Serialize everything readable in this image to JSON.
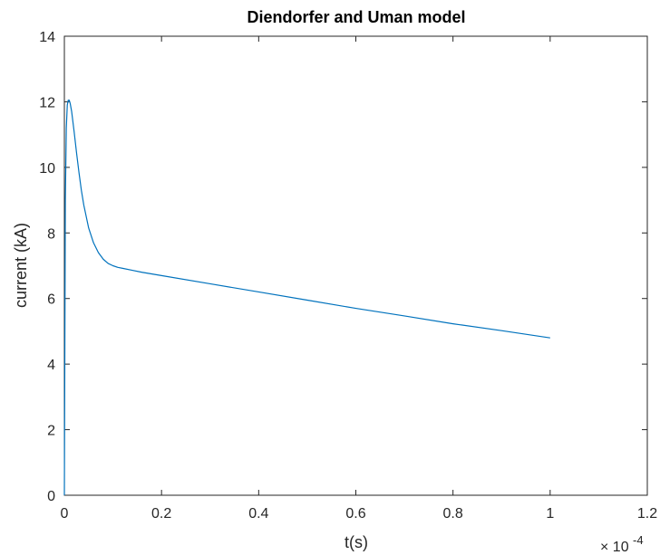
{
  "chart_data": {
    "type": "line",
    "title": "Diendorfer and Uman model",
    "xlabel": "t(s)",
    "ylabel": "current (kA)",
    "x_exponent_label": {
      "base": "× 10",
      "exponent": "-4"
    },
    "xlim": [
      0,
      1.2
    ],
    "ylim": [
      0,
      14
    ],
    "x_ticks": [
      0,
      0.2,
      0.4,
      0.6,
      0.8,
      1,
      1.2
    ],
    "x_tick_labels": [
      "0",
      "0.2",
      "0.4",
      "0.6",
      "0.8",
      "1",
      "1.2"
    ],
    "y_ticks": [
      0,
      2,
      4,
      6,
      8,
      10,
      12,
      14
    ],
    "y_tick_labels": [
      "0",
      "2",
      "4",
      "6",
      "8",
      "10",
      "12",
      "14"
    ],
    "grid": false,
    "line_color": "#0072BD",
    "series": [
      {
        "x": [
          0,
          0.002,
          0.004,
          0.006,
          0.008,
          0.01,
          0.012,
          0.015,
          0.02,
          0.025,
          0.03,
          0.035,
          0.04,
          0.05,
          0.06,
          0.07,
          0.08,
          0.09,
          0.1,
          0.11,
          0.12,
          0.14,
          0.16,
          0.2,
          0.3,
          0.4,
          0.5,
          0.6,
          0.7,
          0.8,
          0.9,
          1.0
        ],
        "y": [
          0,
          9.0,
          11.2,
          11.9,
          12.05,
          12.05,
          11.95,
          11.7,
          11.1,
          10.45,
          9.85,
          9.3,
          8.85,
          8.15,
          7.7,
          7.4,
          7.2,
          7.07,
          7.0,
          6.95,
          6.92,
          6.86,
          6.8,
          6.7,
          6.45,
          6.2,
          5.95,
          5.7,
          5.47,
          5.23,
          5.02,
          4.8
        ]
      }
    ]
  }
}
